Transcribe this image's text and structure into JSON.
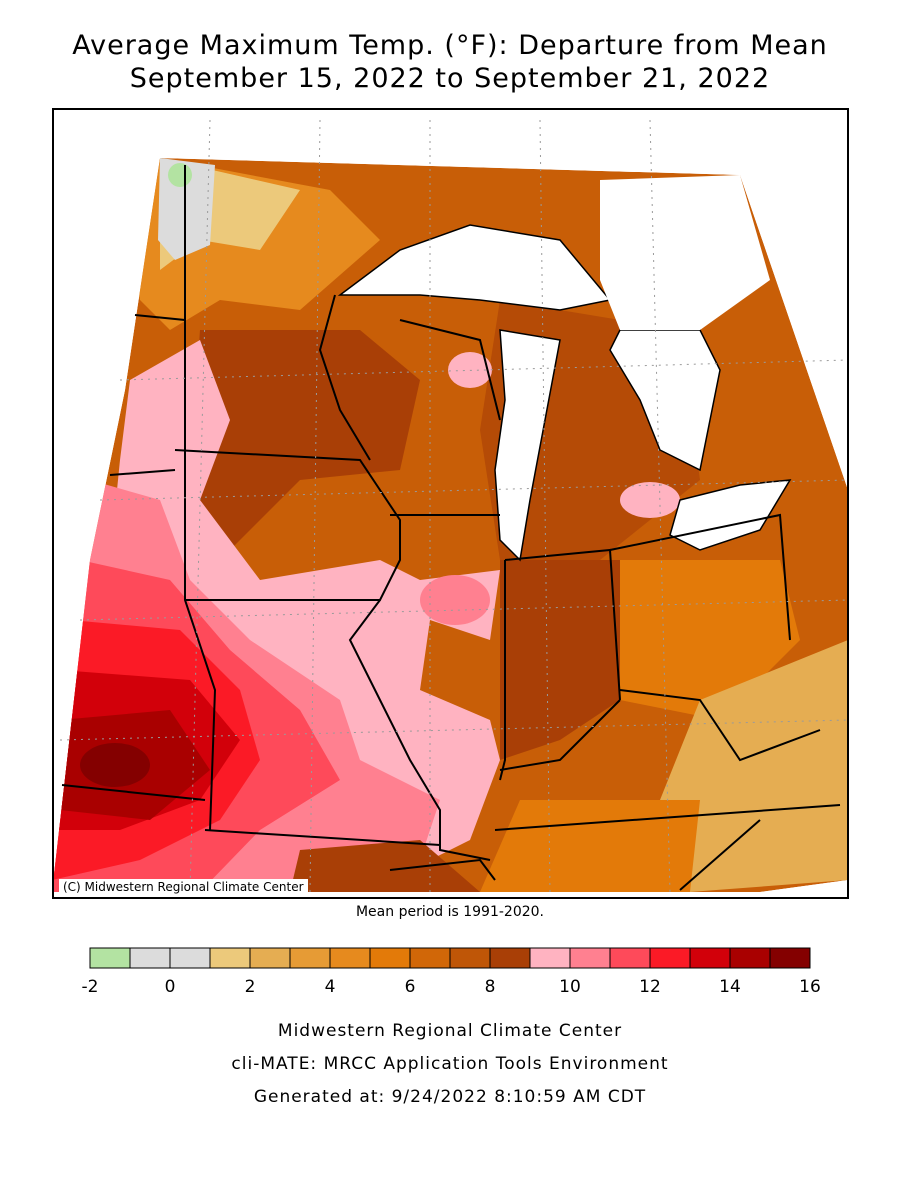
{
  "title_line1": "Average Maximum Temp. (°F): Departure from Mean",
  "title_line2": "September 15, 2022 to September 21, 2022",
  "credit": "(C) Midwestern Regional Climate Center",
  "mean_period": "Mean period is 1991-2020.",
  "legend": {
    "ticks": [
      "-2",
      "0",
      "2",
      "4",
      "6",
      "8",
      "10",
      "12",
      "14",
      "16"
    ],
    "bins": [
      {
        "from": -2,
        "to": -1,
        "color": "#b3e3a2"
      },
      {
        "from": -1,
        "to": 0,
        "color": "#dcdcdc"
      },
      {
        "from": 0,
        "to": 1,
        "color": "#dcdcdc"
      },
      {
        "from": 1,
        "to": 2,
        "color": "#ecc97b"
      },
      {
        "from": 2,
        "to": 3,
        "color": "#e5ad52"
      },
      {
        "from": 3,
        "to": 4,
        "color": "#e69b35"
      },
      {
        "from": 4,
        "to": 5,
        "color": "#e68a1e"
      },
      {
        "from": 5,
        "to": 6,
        "color": "#e37a09"
      },
      {
        "from": 6,
        "to": 7,
        "color": "#d16708"
      },
      {
        "from": 7,
        "to": 8,
        "color": "#bf5607"
      },
      {
        "from": 8,
        "to": 9,
        "color": "#a93f06"
      },
      {
        "from": 9,
        "to": 10,
        "color": "#ffb3c1"
      },
      {
        "from": 10,
        "to": 11,
        "color": "#ff8090"
      },
      {
        "from": 11,
        "to": 12,
        "color": "#fe4a5a"
      },
      {
        "from": 12,
        "to": 13,
        "color": "#fb1a26"
      },
      {
        "from": 13,
        "to": 14,
        "color": "#d2000a"
      },
      {
        "from": 14,
        "to": 15,
        "color": "#a90000"
      },
      {
        "from": 15,
        "to": 16,
        "color": "#840000"
      }
    ]
  },
  "footer": {
    "line1": "Midwestern Regional Climate Center",
    "line2": "cli-MATE: MRCC Application Tools Environment",
    "line3": "Generated at: 9/24/2022 8:10:59 AM CDT"
  }
}
